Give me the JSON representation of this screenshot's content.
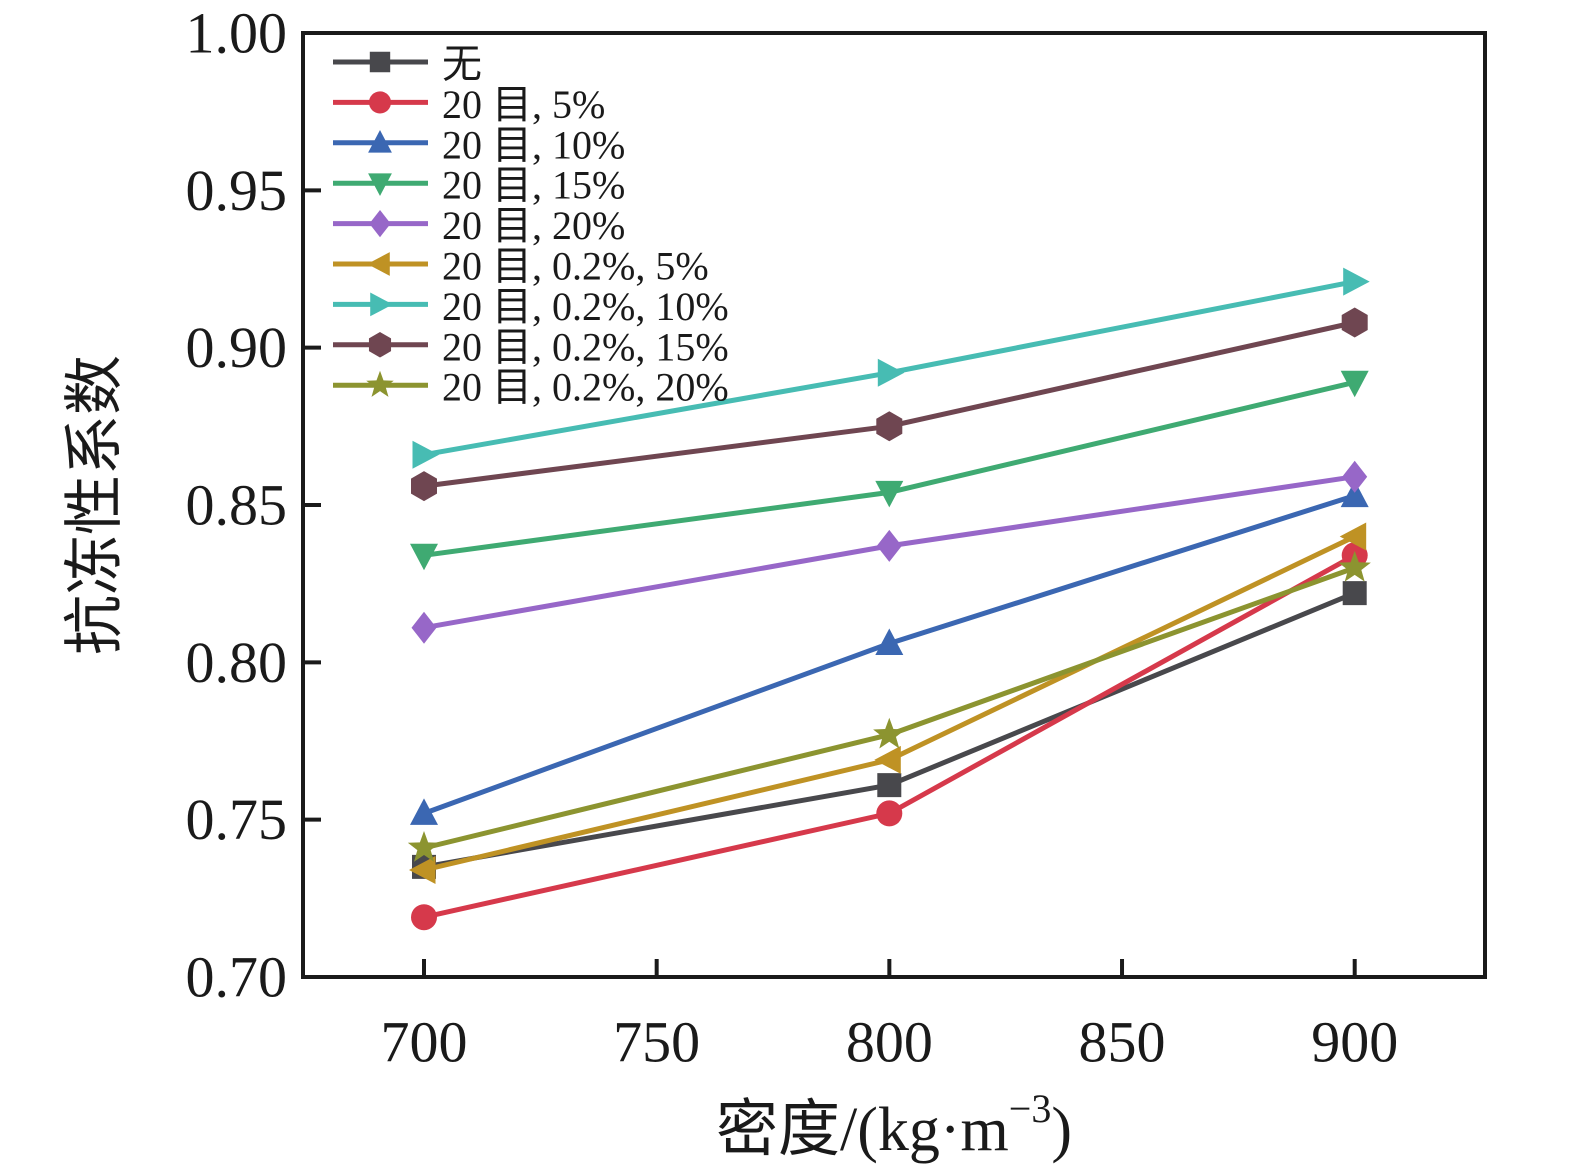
{
  "figure": {
    "background": "#ffffff",
    "text_color": "#1a1a1a",
    "axis_color": "#1a1a1a"
  },
  "chart_data": {
    "type": "line",
    "title": "",
    "xlabel": {
      "main": "密度/(kg·m",
      "sup": "−3",
      "end": ")"
    },
    "ylabel": "抗冻性系数",
    "x": [
      700,
      800,
      900
    ],
    "x_tick_labels": [
      "700",
      "750",
      "800",
      "850",
      "900"
    ],
    "x_ticks": [
      700,
      750,
      800,
      850,
      900
    ],
    "y_ticks": [
      0.7,
      0.75,
      0.8,
      0.85,
      0.9,
      0.95,
      1.0
    ],
    "y_tick_labels": [
      "0.70",
      "0.75",
      "0.80",
      "0.85",
      "0.90",
      "0.95",
      "1.00"
    ],
    "xlim": [
      674,
      928
    ],
    "ylim": [
      0.7,
      1.0
    ],
    "grid": false,
    "legend_position": "top-left-inside",
    "series": [
      {
        "name": "无",
        "marker": "square",
        "color": "#48484c",
        "values": [
          0.735,
          0.761,
          0.822
        ]
      },
      {
        "name": "20 目, 5%",
        "marker": "circle",
        "color": "#d6394b",
        "values": [
          0.719,
          0.752,
          0.834
        ]
      },
      {
        "name": "20 目, 10%",
        "marker": "triangle-up",
        "color": "#3b67b2",
        "values": [
          0.752,
          0.806,
          0.853
        ]
      },
      {
        "name": "20 目, 15%",
        "marker": "triangle-down",
        "color": "#3faa72",
        "values": [
          0.834,
          0.854,
          0.889
        ]
      },
      {
        "name": "20 目, 20%",
        "marker": "diamond",
        "color": "#9767c8",
        "values": [
          0.811,
          0.837,
          0.859
        ]
      },
      {
        "name": "20 目, 0.2%, 5%",
        "marker": "triangle-left",
        "color": "#bf9224",
        "values": [
          0.734,
          0.769,
          0.84
        ]
      },
      {
        "name": "20 目, 0.2%, 10%",
        "marker": "triangle-right",
        "color": "#47bcb3",
        "values": [
          0.866,
          0.892,
          0.921
        ]
      },
      {
        "name": "20 目, 0.2%, 15%",
        "marker": "hexagon",
        "color": "#6f4651",
        "values": [
          0.856,
          0.875,
          0.908
        ]
      },
      {
        "name": "20 目, 0.2%, 20%",
        "marker": "star",
        "color": "#8c9430",
        "values": [
          0.741,
          0.777,
          0.83
        ]
      }
    ]
  }
}
